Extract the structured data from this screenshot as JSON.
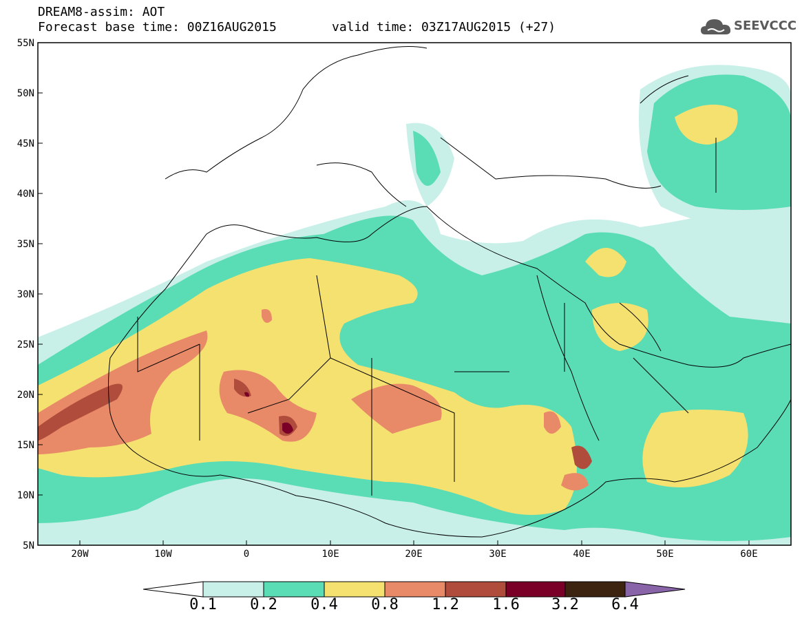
{
  "header": {
    "title": "DREAM8-assim: AOT",
    "base_time": "Forecast base time: 00Z16AUG2015",
    "valid_time": "valid time: 03Z17AUG2015 (+27)"
  },
  "logo": {
    "text": "SEEVCCC",
    "icon": "cloud-logo-icon"
  },
  "map": {
    "lat_labels": [
      "55N",
      "50N",
      "45N",
      "40N",
      "35N",
      "30N",
      "25N",
      "20N",
      "15N",
      "10N",
      "5N"
    ],
    "lon_labels": [
      "20W",
      "10W",
      "0",
      "10E",
      "20E",
      "30E",
      "40E",
      "50E",
      "60E"
    ],
    "lon_range": [
      -25,
      65
    ],
    "lat_range": [
      5,
      55
    ]
  },
  "colorbar": {
    "labels": [
      "0.1",
      "0.2",
      "0.4",
      "0.8",
      "1.2",
      "1.6",
      "3.2",
      "6.4"
    ],
    "colors": [
      "#c8f0e8",
      "#5adcb4",
      "#f5e170",
      "#e88a68",
      "#b04c3c",
      "#7a0028",
      "#3c2410",
      "#8a64a8"
    ]
  }
}
